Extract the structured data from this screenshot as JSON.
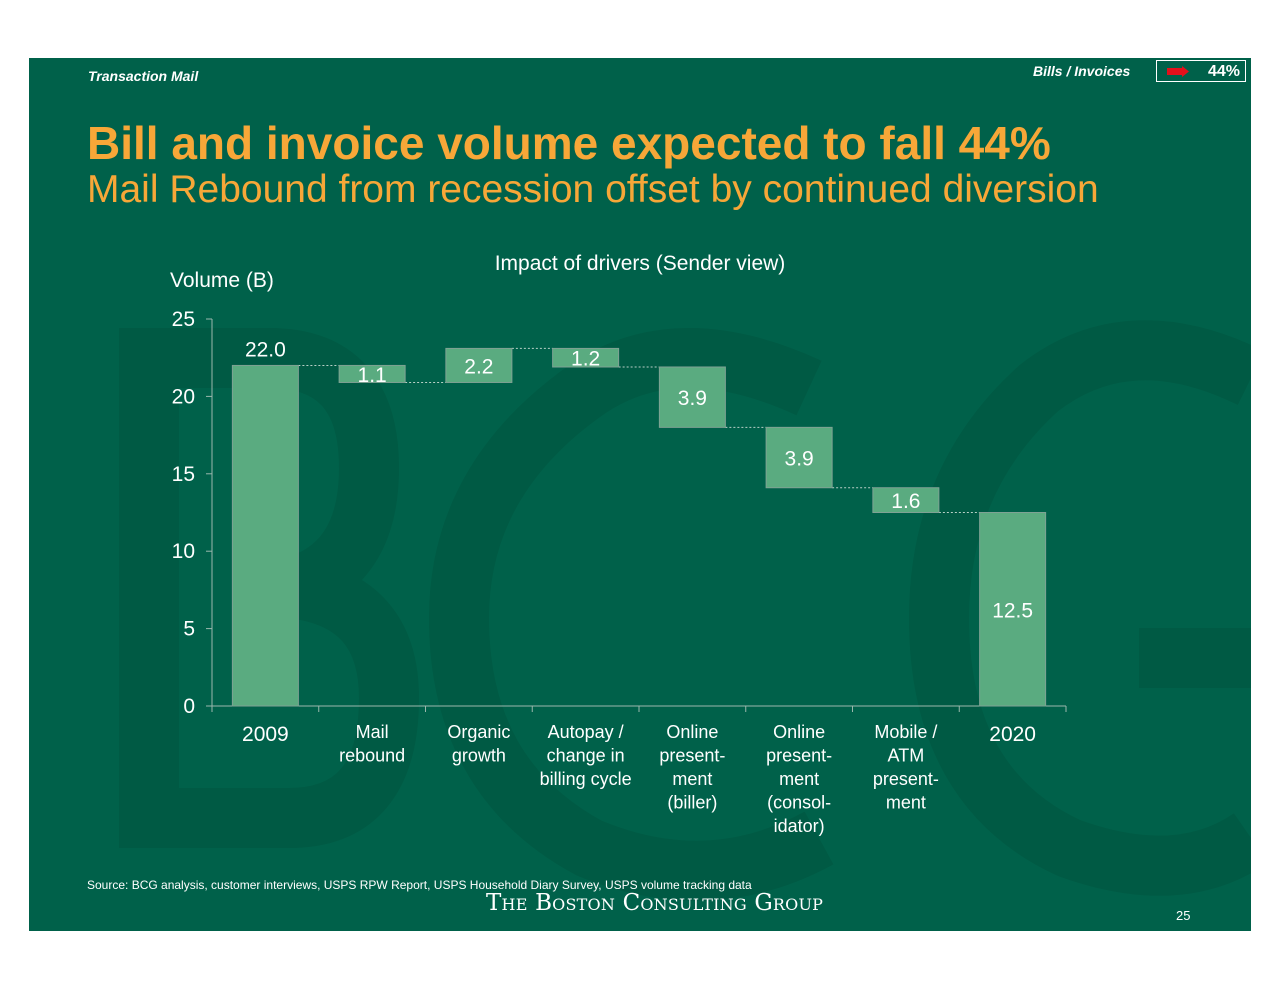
{
  "header": {
    "section": "Transaction Mail",
    "category": "Bills / Invoices",
    "change_indicator": "44%",
    "indicator_color": "#e3101b"
  },
  "title": "Bill and invoice volume expected to fall 44%",
  "subtitle": "Mail Rebound from recession offset by continued diversion",
  "chart_data": {
    "type": "bar",
    "subtype": "waterfall",
    "title": "Impact of drivers (Sender view)",
    "ylabel": "Volume (B)",
    "ylim": [
      0,
      25
    ],
    "yticks": [
      "0",
      "5",
      "10",
      "15",
      "20",
      "25"
    ],
    "grid": false,
    "bar_color": "#5aab80",
    "categories": [
      "2009",
      "Mail rebound",
      "Organic growth",
      "Autopay / change in billing cycle",
      "Online present-ment (biller)",
      "Online present-ment (consol-idator)",
      "Mobile / ATM present-ment",
      "2020"
    ],
    "category_labels": [
      [
        "2009"
      ],
      [
        "Mail",
        "rebound"
      ],
      [
        "Organic",
        "growth"
      ],
      [
        "Autopay /",
        "change in",
        "billing cycle"
      ],
      [
        "Online",
        "present-",
        "ment",
        "(biller)"
      ],
      [
        "Online",
        "present-",
        "ment",
        "(consol-",
        "idator)"
      ],
      [
        "Mobile /",
        "ATM",
        "present-",
        "ment"
      ],
      [
        "2020"
      ]
    ],
    "bars": [
      {
        "kind": "total",
        "from": 0,
        "to": 22.0,
        "label": "22.0"
      },
      {
        "kind": "delta",
        "from": 20.9,
        "to": 22.0,
        "label": "1.1"
      },
      {
        "kind": "delta",
        "from": 20.9,
        "to": 23.1,
        "label": "2.2"
      },
      {
        "kind": "delta",
        "from": 21.9,
        "to": 23.1,
        "label": "1.2"
      },
      {
        "kind": "delta",
        "from": 18.0,
        "to": 21.9,
        "label": "3.9"
      },
      {
        "kind": "delta",
        "from": 14.1,
        "to": 18.0,
        "label": "3.9"
      },
      {
        "kind": "delta",
        "from": 12.5,
        "to": 14.1,
        "label": "1.6"
      },
      {
        "kind": "total",
        "from": 0,
        "to": 12.5,
        "label": "12.5"
      }
    ]
  },
  "source": "Source: BCG analysis, customer interviews, USPS RPW Report, USPS Household Diary Survey, USPS volume tracking data",
  "logo_text": "The Boston Consulting Group",
  "page_number": "25",
  "watermark": "BCG"
}
